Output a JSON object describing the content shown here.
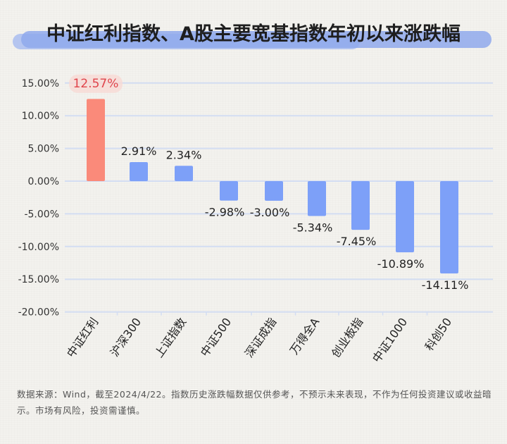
{
  "title": "中证红利指数、A股主要宽基指数年初以来涨跌幅",
  "footnote": "数据来源：Wind，截至2024/4/22。指数历史涨跌幅数据仅供参考，不预示未来表现，不作为任何投资建议或收益暗示。市场有风险，投资需谨慎。",
  "colors": {
    "highlight_bar": "#fa8a7a",
    "bar": "#7da0f8",
    "highlight_label": "#e0444b",
    "gridline": "#d3ddf2",
    "title_highlight": "#8fa9ec"
  },
  "chart_data": {
    "type": "bar",
    "title": "中证红利指数、A股主要宽基指数年初以来涨跌幅",
    "xlabel": "",
    "ylabel": "",
    "categories": [
      "中证红利",
      "沪深300",
      "上证指数",
      "中证500",
      "深证成指",
      "万得全A",
      "创业板指",
      "中证1000",
      "科创50"
    ],
    "values": [
      12.57,
      2.91,
      2.34,
      -2.98,
      -3.0,
      -5.34,
      -7.45,
      -10.89,
      -14.11
    ],
    "value_labels": [
      "12.57%",
      "2.91%",
      "2.34%",
      "-2.98%",
      "-3.00%",
      "-5.34%",
      "-7.45%",
      "-10.89%",
      "-14.11%"
    ],
    "highlight_index": 0,
    "unit": "%",
    "ylim": [
      -20,
      15
    ],
    "yticks": [
      15,
      10,
      5,
      0,
      -5,
      -10,
      -15,
      -20
    ],
    "ytick_labels": [
      "15.00%",
      "10.00%",
      "5.00%",
      "0.00%",
      "-5.00%",
      "-10.00%",
      "-15.00%",
      "-20.00%"
    ],
    "grid": true,
    "legend": null
  }
}
